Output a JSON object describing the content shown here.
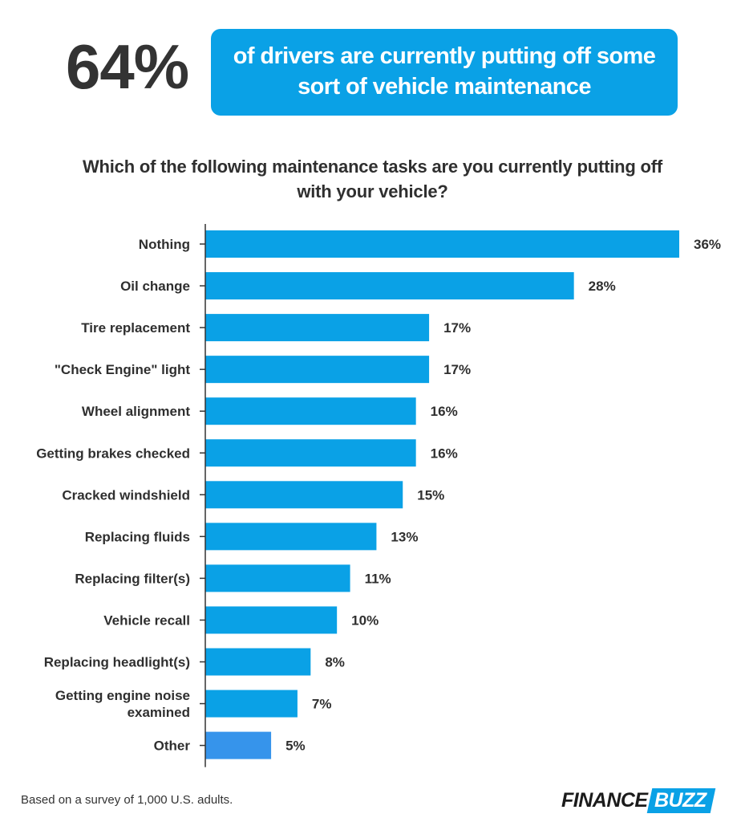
{
  "headline": {
    "stat": "64%",
    "statement_line1": "of drivers are currently putting off some",
    "statement_line2": "sort of vehicle maintenance"
  },
  "colors": {
    "bar": "#0aa1e6",
    "bar_other": "#3694eb",
    "axis": "#333333",
    "text": "#2f2f2f"
  },
  "chart_data": {
    "type": "bar",
    "orientation": "horizontal",
    "title_line1": "Which of the following maintenance tasks are you currently putting off",
    "title_line2": "with your vehicle?",
    "unit": "%",
    "categories": [
      [
        "Nothing"
      ],
      [
        "Oil change"
      ],
      [
        "Tire replacement"
      ],
      [
        "\"Check Engine\" light"
      ],
      [
        "Wheel alignment"
      ],
      [
        "Getting brakes checked"
      ],
      [
        "Cracked windshield"
      ],
      [
        "Replacing fluids"
      ],
      [
        "Replacing filter(s)"
      ],
      [
        "Vehicle recall"
      ],
      [
        "Replacing headlight(s)"
      ],
      [
        "Getting engine noise",
        "examined"
      ],
      [
        "Other"
      ]
    ],
    "values": [
      36,
      28,
      17,
      17,
      16,
      16,
      15,
      13,
      11,
      10,
      8,
      7,
      5
    ],
    "value_labels": [
      "36%",
      "28%",
      "17%",
      "17%",
      "16%",
      "16%",
      "15%",
      "13%",
      "11%",
      "10%",
      "8%",
      "7%",
      "5%"
    ],
    "highlight_index": 12,
    "xlim": [
      0,
      36
    ]
  },
  "footer": {
    "note": "Based on a survey of 1,000 U.S. adults.",
    "logo_part1": "FINANCE",
    "logo_part2": "BUZZ"
  }
}
